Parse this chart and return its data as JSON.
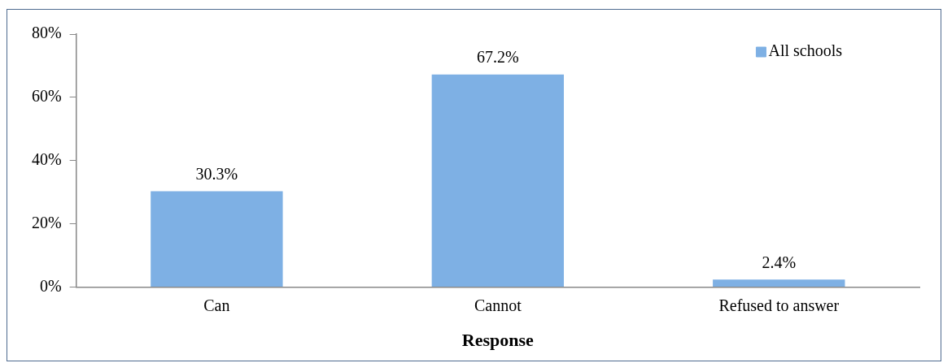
{
  "chart_data": {
    "type": "bar",
    "xlabel": "Response",
    "categories": [
      "Can",
      "Cannot",
      "Refused to answer"
    ],
    "series": [
      {
        "name": "All schools",
        "color": "#7eb0e4",
        "values": [
          30.3,
          67.2,
          2.4
        ]
      }
    ],
    "value_labels": [
      "30.3%",
      "67.2%",
      "2.4%"
    ],
    "ylim": [
      0,
      80
    ],
    "yticks": [
      {
        "value": 0,
        "label": "0%"
      },
      {
        "value": 20,
        "label": "20%"
      },
      {
        "value": 40,
        "label": "40%"
      },
      {
        "value": 60,
        "label": "60%"
      },
      {
        "value": 80,
        "label": "80%"
      }
    ],
    "grid": false,
    "legend": "top right"
  }
}
